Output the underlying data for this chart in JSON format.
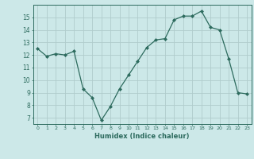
{
  "x": [
    0,
    1,
    2,
    3,
    4,
    5,
    6,
    7,
    8,
    9,
    10,
    11,
    12,
    13,
    14,
    15,
    16,
    17,
    18,
    19,
    20,
    21,
    22,
    23
  ],
  "y": [
    12.5,
    11.9,
    12.1,
    12.0,
    12.3,
    9.3,
    8.6,
    6.8,
    7.9,
    9.3,
    10.4,
    11.5,
    12.6,
    13.2,
    13.3,
    14.8,
    15.1,
    15.1,
    15.5,
    14.2,
    14.0,
    11.7,
    9.0,
    8.9
  ],
  "line_color": "#2d6b5e",
  "marker": "D",
  "marker_size": 2.0,
  "bg_color": "#cce8e8",
  "grid_color": "#b0cccc",
  "xlabel": "Humidex (Indice chaleur)",
  "ylim": [
    6.5,
    16.0
  ],
  "xlim": [
    -0.5,
    23.5
  ],
  "yticks": [
    7,
    8,
    9,
    10,
    11,
    12,
    13,
    14,
    15
  ],
  "xtick_labels": [
    "0",
    "1",
    "2",
    "3",
    "4",
    "5",
    "6",
    "7",
    "8",
    "9",
    "10",
    "11",
    "12",
    "13",
    "14",
    "15",
    "16",
    "17",
    "18",
    "19",
    "20",
    "21",
    "22",
    "23"
  ],
  "font_color": "#2d6b5e",
  "axis_color": "#2d6b5e"
}
